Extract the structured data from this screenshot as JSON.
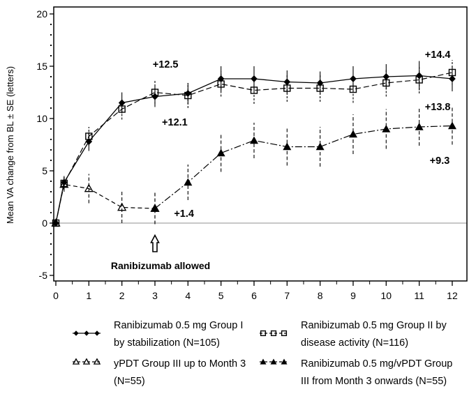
{
  "figure": {
    "background": "#ffffff",
    "series_color": "#000000",
    "zero_line_color": "#909090"
  },
  "chart_data": {
    "type": "line",
    "title": "",
    "xlabel": "",
    "ylabel": "Mean VA change from BL ± SE (letters)",
    "xlim": [
      -0.1,
      12.45
    ],
    "ylim": [
      -5.5,
      20.65
    ],
    "x_ticks": [
      0,
      1,
      2,
      3,
      4,
      5,
      6,
      7,
      8,
      9,
      10,
      11,
      12
    ],
    "x_minor_step": 0.5,
    "y_ticks": [
      -5,
      0,
      5,
      10,
      15,
      20
    ],
    "y_minor_step": 1,
    "grid": false,
    "zero_line": 0,
    "legend_position": "bottom",
    "error_bars": "SE",
    "series": [
      {
        "id": "group1",
        "label_lines": [
          "Ranibizumab 0.5 mg Group I",
          "by stabilization (N=105)"
        ],
        "marker": "diamond-filled",
        "line": "solid",
        "x": [
          0,
          0.25,
          1,
          2,
          3,
          4,
          5,
          6,
          7,
          8,
          9,
          10,
          11,
          12
        ],
        "y": [
          0,
          3.9,
          7.8,
          11.5,
          12.1,
          12.4,
          13.8,
          13.8,
          13.5,
          13.4,
          13.8,
          14.0,
          14.1,
          13.8
        ],
        "se": [
          0.2,
          0.6,
          0.9,
          1.0,
          1.0,
          1.0,
          1.2,
          1.2,
          1.1,
          1.1,
          1.2,
          1.2,
          1.4,
          1.2
        ]
      },
      {
        "id": "group2",
        "label_lines": [
          "Ranibizumab 0.5 mg Group II by",
          "disease activity (N=116)"
        ],
        "marker": "square-open",
        "line": "dashed",
        "x": [
          0,
          0.25,
          1,
          2,
          3,
          4,
          5,
          6,
          7,
          8,
          9,
          10,
          11,
          12
        ],
        "y": [
          0,
          3.8,
          8.3,
          10.9,
          12.5,
          12.2,
          13.3,
          12.7,
          12.9,
          12.9,
          12.8,
          13.4,
          13.7,
          14.4
        ],
        "se": [
          0.2,
          0.6,
          0.9,
          1.0,
          1.1,
          1.2,
          1.2,
          1.3,
          1.3,
          1.3,
          1.3,
          1.3,
          1.3,
          1.2
        ]
      },
      {
        "id": "group3_vpdt",
        "label_lines": [
          "yPDT Group III up to Month 3",
          "(N=55)"
        ],
        "marker": "triangle-open",
        "line": "dash-short",
        "x": [
          0,
          0.25,
          1,
          2,
          3
        ],
        "y": [
          0,
          3.7,
          3.3,
          1.5,
          1.4
        ],
        "se": [
          0.2,
          0.7,
          1.4,
          1.5,
          1.5
        ]
      },
      {
        "id": "group3_ranibizumab_vpdt",
        "label_lines": [
          "Ranibizumab 0.5 mg/vPDT Group",
          "III from Month 3 onwards (N=55)"
        ],
        "marker": "triangle-filled",
        "line": "dash-dot",
        "x": [
          3,
          4,
          5,
          6,
          7,
          8,
          9,
          10,
          11,
          12
        ],
        "y": [
          1.4,
          3.9,
          6.7,
          7.9,
          7.3,
          7.3,
          8.5,
          9.0,
          9.2,
          9.3
        ],
        "se": [
          1.5,
          1.7,
          1.8,
          1.7,
          1.8,
          1.9,
          1.9,
          1.9,
          1.8,
          1.8
        ]
      }
    ],
    "annotations": [
      {
        "text": "+12.5",
        "x": 3.32,
        "y": 15.2
      },
      {
        "text": "+12.1",
        "x": 3.6,
        "y": 9.67
      },
      {
        "text": "+1.4",
        "x": 3.88,
        "y": 0.95
      },
      {
        "text": "+14.4",
        "x": 11.56,
        "y": 16.13
      },
      {
        "text": "+13.8",
        "x": 11.56,
        "y": 11.13
      },
      {
        "text": "+9.3",
        "x": 11.62,
        "y": 6.0
      }
    ],
    "event_arrow": {
      "x": 3,
      "label": "Ranibizumab allowed",
      "label_x": 3.17,
      "label_y": -4.05
    }
  }
}
